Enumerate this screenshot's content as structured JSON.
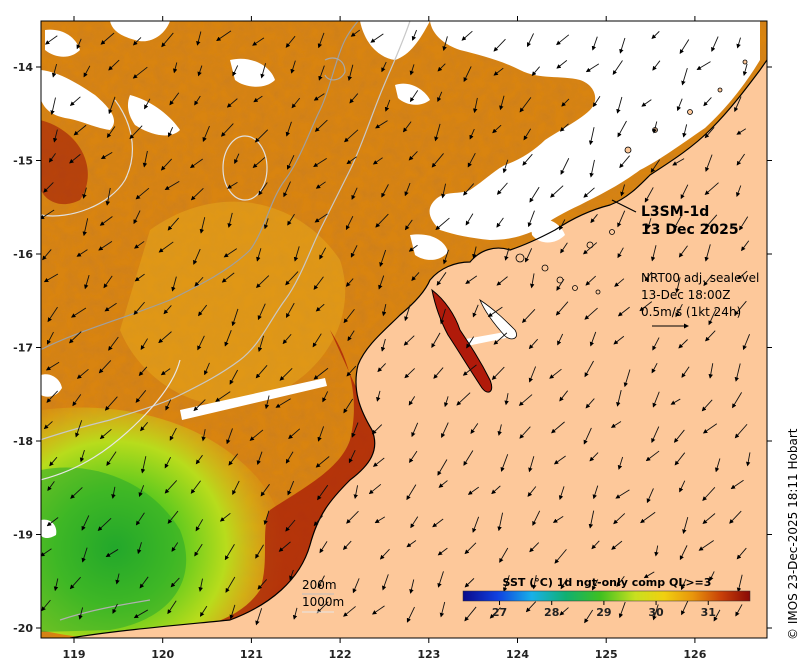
{
  "map": {
    "product": "L3SM-1d",
    "date": "13 Dec 2025",
    "wind_note": {
      "line1": "NRT00 adj. sealevel",
      "line2": "13-Dec 18:00Z",
      "line3": "0.5m/s (1kt 24h)"
    },
    "lat_ticks": [
      "-14",
      "-15",
      "-16",
      "-17",
      "-18",
      "-19",
      "-20"
    ],
    "lon_ticks": [
      "119",
      "120",
      "121",
      "122",
      "123",
      "124",
      "125",
      "126"
    ],
    "bathymetry_labels": [
      "200m",
      "1000m"
    ],
    "colorbar": {
      "title": "SST (°C) 1d ngt-only comp QL>=3",
      "ticks": [
        "27",
        "28",
        "29",
        "30",
        "31"
      ],
      "min": 26.3,
      "max": 31.8
    },
    "credit": "© IMOS 23-Dec-2025 18:11 Hobart",
    "colors": {
      "land": "#fdc89a",
      "no_data": "#ffffff",
      "hot": "#8e0a06",
      "warm": "#d97a0a",
      "mid": "#e8a816",
      "cool": "#7ad61a",
      "coldest": "#1fa52a"
    },
    "icons": [
      "wind-vector-icon",
      "reference-arrow-icon"
    ]
  }
}
